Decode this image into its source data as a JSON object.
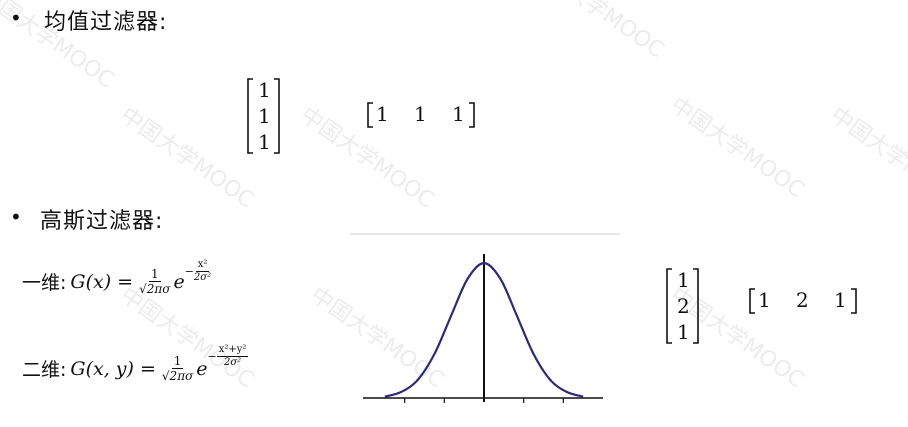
{
  "watermark_text": "中国大学MOOC",
  "section1": {
    "bullet": "•",
    "title": "均值过滤器:",
    "col_vector": [
      "1",
      "1",
      "1"
    ],
    "row_vector": [
      "1",
      "1",
      "1"
    ]
  },
  "section2": {
    "bullet": "•",
    "title": "高斯过滤器:",
    "one_d_label": "一维:",
    "one_d_lhs": "G(x) =",
    "one_d_coef_num": "1",
    "one_d_coef_den": "√2πσ",
    "one_d_base": "e",
    "one_d_exp_num": "x²",
    "one_d_exp_den": "2σ²",
    "two_d_label": "二维:",
    "two_d_lhs": "G(x, y) =",
    "two_d_coef_num": "1",
    "two_d_coef_den": "√2πσ",
    "two_d_base": "e",
    "two_d_exp_num": "x²+y²",
    "two_d_exp_den": "2σ²",
    "col_vector": [
      "1",
      "2",
      "1"
    ],
    "row_vector": [
      "1",
      "2",
      "1"
    ]
  },
  "chart_data": {
    "type": "line",
    "title": "",
    "xlabel": "",
    "ylabel": "",
    "series": [
      {
        "values_desc": "",
        "x": [
          -3,
          -2.5,
          -2,
          -1.5,
          -1,
          -0.5,
          0,
          0.5,
          1,
          1.5,
          2,
          2.5,
          3
        ],
        "y": [
          0.004,
          0.018,
          0.054,
          0.13,
          0.242,
          0.352,
          0.399,
          0.352,
          0.242,
          0.13,
          0.054,
          0.018,
          0.004
        ]
      }
    ],
    "xlim": [
      -3.6,
      3.6
    ],
    "ylim": [
      0,
      0.42
    ],
    "line_color": "#2e2a7a"
  }
}
